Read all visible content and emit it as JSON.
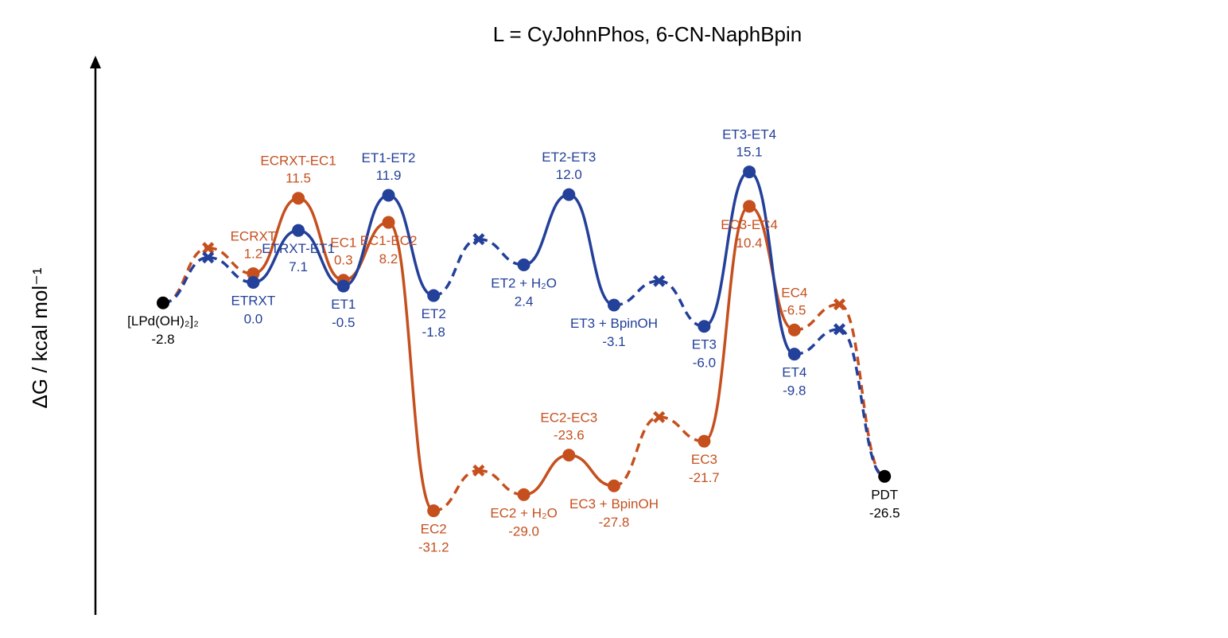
{
  "chart_data": {
    "type": "energy-profile",
    "title": "L = CyJohnPhos, 6-CN-NaphBpin",
    "y_label": "ΔG / kcal mol⁻¹",
    "endpoints": [
      {
        "label": "[LPd(OH)₂]₂",
        "value": -2.8
      },
      {
        "label": "PDT",
        "value": -26.5
      }
    ],
    "endpoint_color": "#000000",
    "series": [
      {
        "color": "#c5501e",
        "labels": [
          null,
          "ECRXT",
          "ECRXT-EC1",
          "EC1",
          "EC1-EC2",
          "EC2",
          null,
          "EC2 + H₂O",
          "EC2-EC3",
          "EC3 + BpinOH",
          null,
          "EC3",
          "EC3-EC4",
          "EC4",
          null
        ],
        "values": [
          4.7,
          1.2,
          11.5,
          0.3,
          8.2,
          -31.2,
          -25.7,
          -29.0,
          -23.6,
          -27.8,
          -18.4,
          -21.7,
          10.4,
          -6.5,
          -3.0
        ],
        "value_labels": [
          null,
          "1.2",
          "11.5",
          "0.3",
          "8.2",
          "-31.2",
          null,
          "-29.0",
          "-23.6",
          "-27.8",
          null,
          "-21.7",
          "10.4",
          "-6.5",
          null
        ],
        "markers": [
          "x",
          "circle",
          "circle",
          "circle",
          "circle",
          "circle",
          "x",
          "circle",
          "circle",
          "circle",
          "x",
          "circle",
          "circle",
          "circle",
          "x"
        ],
        "label_positions": [
          null,
          "above",
          "above",
          "above",
          "below",
          "below",
          null,
          "below",
          "above",
          "below",
          null,
          "below",
          "below",
          "above",
          null
        ]
      },
      {
        "color": "#23409a",
        "labels": [
          null,
          "ETRXT",
          "ETRXT-ET1",
          "ET1",
          "ET1-ET2",
          "ET2",
          null,
          "ET2 + H₂O",
          "ET2-ET3",
          "ET3 + BpinOH",
          null,
          "ET3",
          "ET3-ET4",
          "ET4",
          null
        ],
        "values": [
          3.4,
          0.0,
          7.1,
          -0.5,
          11.9,
          -1.8,
          5.9,
          2.4,
          12.0,
          -3.1,
          0.2,
          -6.0,
          15.1,
          -9.8,
          -6.4
        ],
        "value_labels": [
          null,
          "0.0",
          "7.1",
          "-0.5",
          "11.9",
          "-1.8",
          null,
          "2.4",
          "12.0",
          "-3.1",
          null,
          "-6.0",
          "15.1",
          "-9.8",
          null
        ],
        "markers": [
          "x",
          "circle",
          "circle",
          "circle",
          "circle",
          "circle",
          "x",
          "circle",
          "circle",
          "circle",
          "x",
          "circle",
          "circle",
          "circle",
          "x"
        ],
        "label_positions": [
          null,
          "below",
          "below",
          "below",
          "above",
          "below",
          null,
          "below",
          "above",
          "below",
          null,
          "below",
          "above",
          "below",
          null
        ]
      }
    ]
  }
}
